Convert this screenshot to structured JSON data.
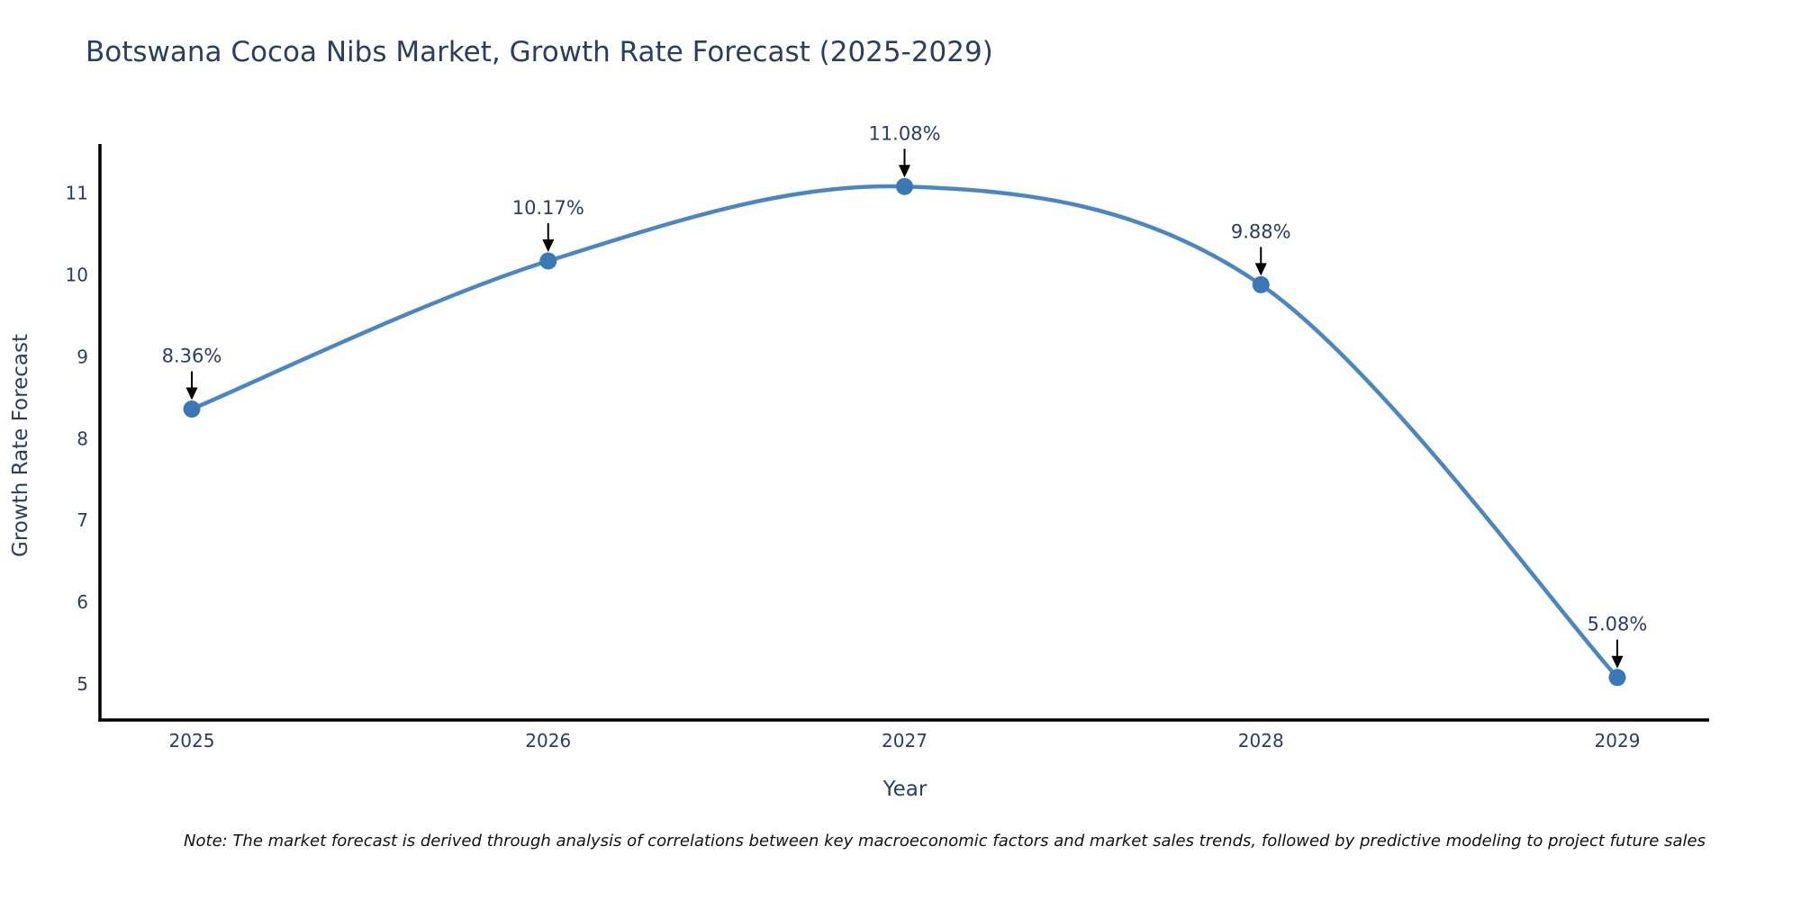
{
  "chart_data": {
    "type": "line",
    "title": "Botswana Cocoa Nibs Market, Growth Rate Forecast (2025-2029)",
    "xlabel": "Year",
    "ylabel": "Growth Rate Forecast",
    "x": [
      2025,
      2026,
      2027,
      2028,
      2029
    ],
    "series": [
      {
        "name": "Growth Rate Forecast",
        "values": [
          8.36,
          10.17,
          11.08,
          9.88,
          5.08
        ],
        "point_labels": [
          "8.36%",
          "10.17%",
          "11.08%",
          "9.88%",
          "5.08%"
        ]
      }
    ],
    "yticks": [
      5,
      6,
      7,
      8,
      9,
      10,
      11
    ],
    "ylim": [
      4.56,
      11.6
    ],
    "line_shape": "spline",
    "grid": false,
    "legend_position": "none",
    "colors": {
      "line": "#4a87c2",
      "marker": "#3a78b5",
      "axis": "#000000",
      "text": "#2a3f5f",
      "annotation_arrow": "#000000"
    }
  },
  "footnote": "Note: The market forecast is derived through analysis of correlations between key macroeconomic factors and market sales trends, followed by predictive modeling to project future sales"
}
